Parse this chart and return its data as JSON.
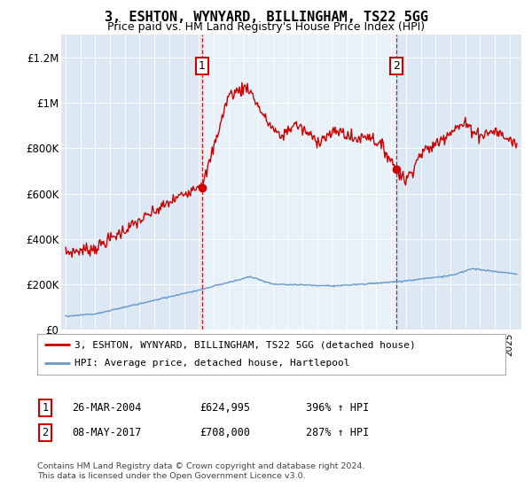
{
  "title": "3, ESHTON, WYNYARD, BILLINGHAM, TS22 5GG",
  "subtitle": "Price paid vs. HM Land Registry's House Price Index (HPI)",
  "plot_bg_color": "#dce9f5",
  "shade_color": "#c8ddf0",
  "ylabel_ticks": [
    "£0",
    "£200K",
    "£400K",
    "£600K",
    "£800K",
    "£1M",
    "£1.2M"
  ],
  "ytick_vals": [
    0,
    200000,
    400000,
    600000,
    800000,
    1000000,
    1200000
  ],
  "ylim": [
    0,
    1300000
  ],
  "xlim_start": 1994.7,
  "xlim_end": 2025.8,
  "sale1_year": 2004.23,
  "sale1_price": 624995,
  "sale2_year": 2017.36,
  "sale2_price": 708000,
  "sale1_date": "26-MAR-2004",
  "sale1_hpi_text": "396% ↑ HPI",
  "sale1_price_text": "£624,995",
  "sale2_date": "08-MAY-2017",
  "sale2_hpi_text": "287% ↑ HPI",
  "sale2_price_text": "£708,000",
  "red_color": "#cc0000",
  "blue_color": "#6699cc",
  "legend_line1": "3, ESHTON, WYNYARD, BILLINGHAM, TS22 5GG (detached house)",
  "legend_line2": "HPI: Average price, detached house, Hartlepool",
  "footnote1": "Contains HM Land Registry data © Crown copyright and database right 2024.",
  "footnote2": "This data is licensed under the Open Government Licence v3.0."
}
